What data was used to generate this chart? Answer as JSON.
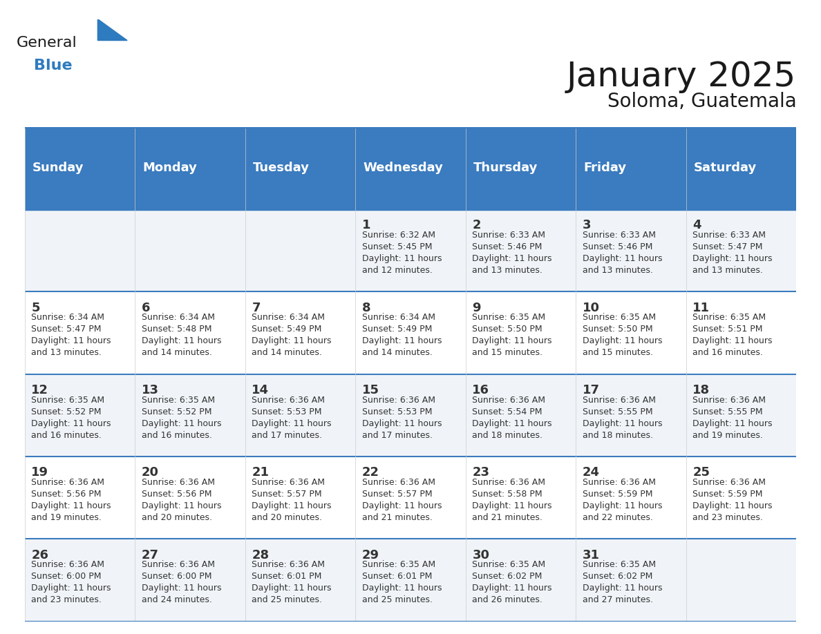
{
  "title": "January 2025",
  "subtitle": "Soloma, Guatemala",
  "header_color": "#3b7bbf",
  "header_text_color": "#ffffff",
  "cell_bg_color": "#f0f4f8",
  "alt_cell_bg": "#ffffff",
  "border_color": "#3b7bbf",
  "day_names": [
    "Sunday",
    "Monday",
    "Tuesday",
    "Wednesday",
    "Thursday",
    "Friday",
    "Saturday"
  ],
  "calendar_data": [
    [
      {
        "day": "",
        "info": ""
      },
      {
        "day": "",
        "info": ""
      },
      {
        "day": "",
        "info": ""
      },
      {
        "day": "1",
        "info": "Sunrise: 6:32 AM\nSunset: 5:45 PM\nDaylight: 11 hours\nand 12 minutes."
      },
      {
        "day": "2",
        "info": "Sunrise: 6:33 AM\nSunset: 5:46 PM\nDaylight: 11 hours\nand 13 minutes."
      },
      {
        "day": "3",
        "info": "Sunrise: 6:33 AM\nSunset: 5:46 PM\nDaylight: 11 hours\nand 13 minutes."
      },
      {
        "day": "4",
        "info": "Sunrise: 6:33 AM\nSunset: 5:47 PM\nDaylight: 11 hours\nand 13 minutes."
      }
    ],
    [
      {
        "day": "5",
        "info": "Sunrise: 6:34 AM\nSunset: 5:47 PM\nDaylight: 11 hours\nand 13 minutes."
      },
      {
        "day": "6",
        "info": "Sunrise: 6:34 AM\nSunset: 5:48 PM\nDaylight: 11 hours\nand 14 minutes."
      },
      {
        "day": "7",
        "info": "Sunrise: 6:34 AM\nSunset: 5:49 PM\nDaylight: 11 hours\nand 14 minutes."
      },
      {
        "day": "8",
        "info": "Sunrise: 6:34 AM\nSunset: 5:49 PM\nDaylight: 11 hours\nand 14 minutes."
      },
      {
        "day": "9",
        "info": "Sunrise: 6:35 AM\nSunset: 5:50 PM\nDaylight: 11 hours\nand 15 minutes."
      },
      {
        "day": "10",
        "info": "Sunrise: 6:35 AM\nSunset: 5:50 PM\nDaylight: 11 hours\nand 15 minutes."
      },
      {
        "day": "11",
        "info": "Sunrise: 6:35 AM\nSunset: 5:51 PM\nDaylight: 11 hours\nand 16 minutes."
      }
    ],
    [
      {
        "day": "12",
        "info": "Sunrise: 6:35 AM\nSunset: 5:52 PM\nDaylight: 11 hours\nand 16 minutes."
      },
      {
        "day": "13",
        "info": "Sunrise: 6:35 AM\nSunset: 5:52 PM\nDaylight: 11 hours\nand 16 minutes."
      },
      {
        "day": "14",
        "info": "Sunrise: 6:36 AM\nSunset: 5:53 PM\nDaylight: 11 hours\nand 17 minutes."
      },
      {
        "day": "15",
        "info": "Sunrise: 6:36 AM\nSunset: 5:53 PM\nDaylight: 11 hours\nand 17 minutes."
      },
      {
        "day": "16",
        "info": "Sunrise: 6:36 AM\nSunset: 5:54 PM\nDaylight: 11 hours\nand 18 minutes."
      },
      {
        "day": "17",
        "info": "Sunrise: 6:36 AM\nSunset: 5:55 PM\nDaylight: 11 hours\nand 18 minutes."
      },
      {
        "day": "18",
        "info": "Sunrise: 6:36 AM\nSunset: 5:55 PM\nDaylight: 11 hours\nand 19 minutes."
      }
    ],
    [
      {
        "day": "19",
        "info": "Sunrise: 6:36 AM\nSunset: 5:56 PM\nDaylight: 11 hours\nand 19 minutes."
      },
      {
        "day": "20",
        "info": "Sunrise: 6:36 AM\nSunset: 5:56 PM\nDaylight: 11 hours\nand 20 minutes."
      },
      {
        "day": "21",
        "info": "Sunrise: 6:36 AM\nSunset: 5:57 PM\nDaylight: 11 hours\nand 20 minutes."
      },
      {
        "day": "22",
        "info": "Sunrise: 6:36 AM\nSunset: 5:57 PM\nDaylight: 11 hours\nand 21 minutes."
      },
      {
        "day": "23",
        "info": "Sunrise: 6:36 AM\nSunset: 5:58 PM\nDaylight: 11 hours\nand 21 minutes."
      },
      {
        "day": "24",
        "info": "Sunrise: 6:36 AM\nSunset: 5:59 PM\nDaylight: 11 hours\nand 22 minutes."
      },
      {
        "day": "25",
        "info": "Sunrise: 6:36 AM\nSunset: 5:59 PM\nDaylight: 11 hours\nand 23 minutes."
      }
    ],
    [
      {
        "day": "26",
        "info": "Sunrise: 6:36 AM\nSunset: 6:00 PM\nDaylight: 11 hours\nand 23 minutes."
      },
      {
        "day": "27",
        "info": "Sunrise: 6:36 AM\nSunset: 6:00 PM\nDaylight: 11 hours\nand 24 minutes."
      },
      {
        "day": "28",
        "info": "Sunrise: 6:36 AM\nSunset: 6:01 PM\nDaylight: 11 hours\nand 25 minutes."
      },
      {
        "day": "29",
        "info": "Sunrise: 6:35 AM\nSunset: 6:01 PM\nDaylight: 11 hours\nand 25 minutes."
      },
      {
        "day": "30",
        "info": "Sunrise: 6:35 AM\nSunset: 6:02 PM\nDaylight: 11 hours\nand 26 minutes."
      },
      {
        "day": "31",
        "info": "Sunrise: 6:35 AM\nSunset: 6:02 PM\nDaylight: 11 hours\nand 27 minutes."
      },
      {
        "day": "",
        "info": ""
      }
    ]
  ],
  "logo_general_color": "#1a1a1a",
  "logo_blue_color": "#2e7bbf",
  "title_fontsize": 36,
  "subtitle_fontsize": 20,
  "header_fontsize": 13,
  "day_num_fontsize": 13,
  "info_fontsize": 9
}
